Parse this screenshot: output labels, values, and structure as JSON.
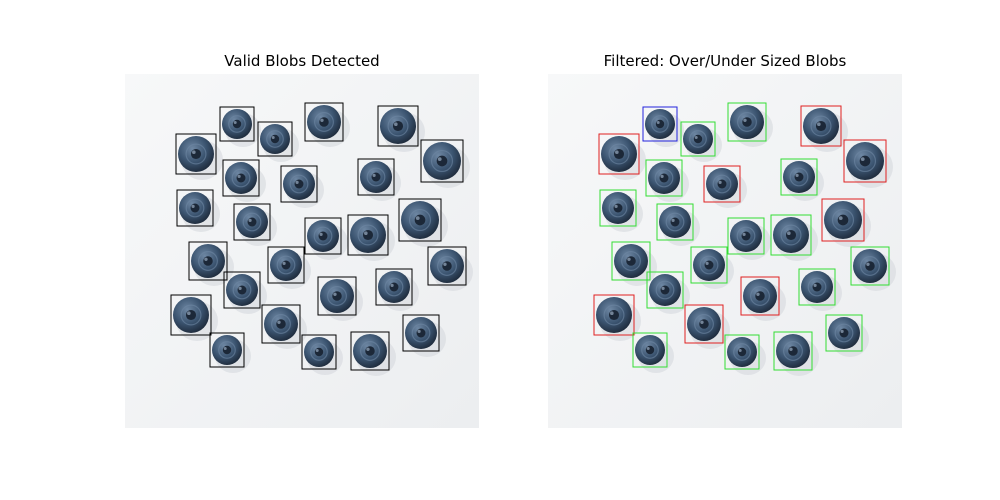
{
  "figure": {
    "left_panel": {
      "title": "Valid Blobs Detected"
    },
    "right_panel": {
      "title": "Filtered: Over/Under Sized Blobs"
    },
    "colors": {
      "background": "#f4f5f6",
      "valid_box": "#000000",
      "ok_box": "#33dd33",
      "oversize_box": "#e02020",
      "undersize_box": "#2222dd",
      "berry_dark": "#1c2838",
      "berry_mid": "#3b5470",
      "berry_light": "#6e87a3"
    }
  }
}
